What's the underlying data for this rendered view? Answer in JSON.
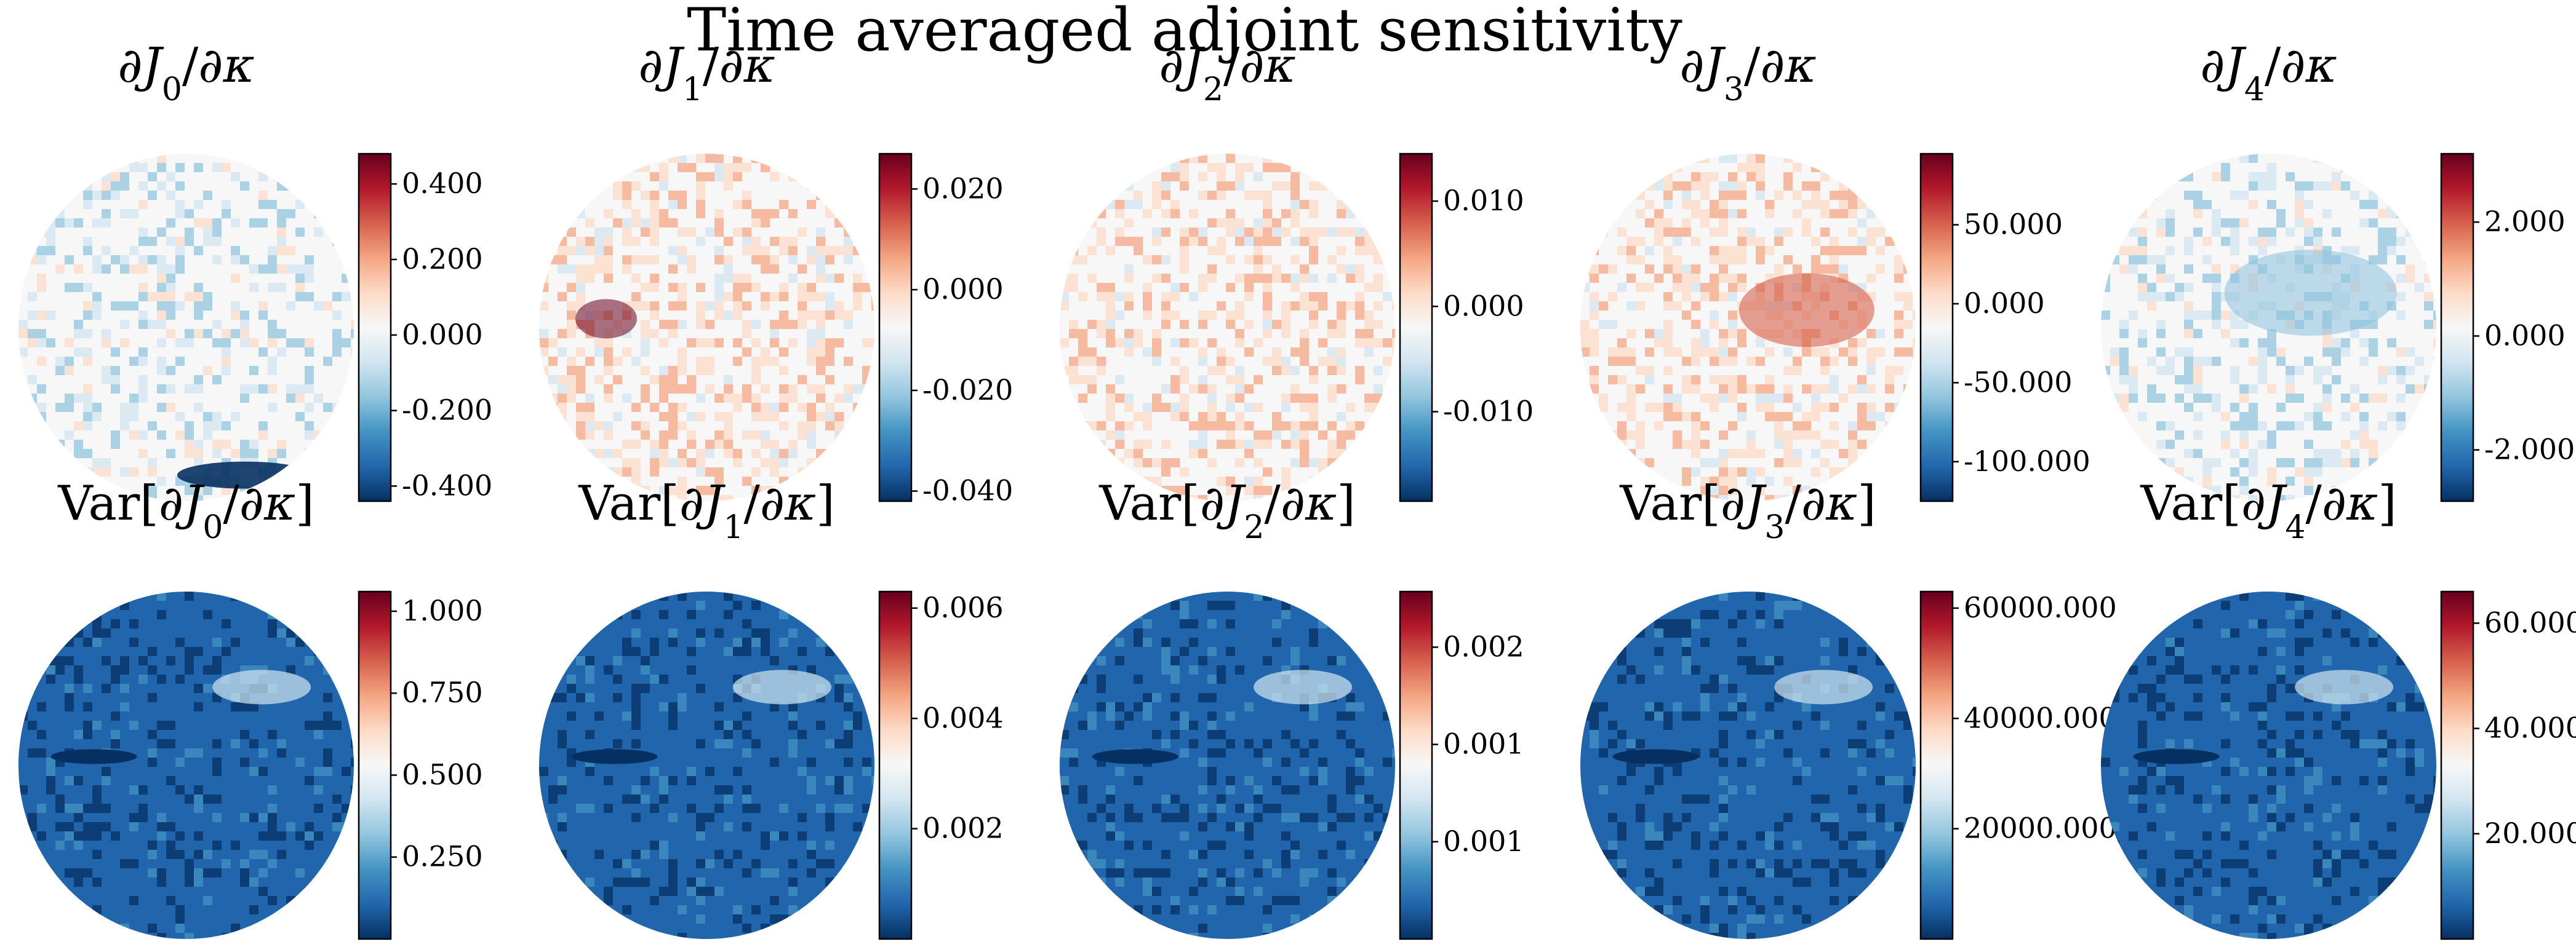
{
  "title": "Time averaged adjoint sensitivity",
  "colormap": {
    "name": "RdBu_r",
    "stops": [
      "#053061",
      "#2166ac",
      "#4393c3",
      "#92c5de",
      "#d1e5f0",
      "#f7f7f7",
      "#fddbc7",
      "#f4a582",
      "#d6604d",
      "#b2182b",
      "#67001f"
    ]
  },
  "chart_data": [
    {
      "type": "heatmap",
      "title": "∂J0/∂κ",
      "field": "mean",
      "symbol": "J",
      "index": "0",
      "range": [
        -0.44,
        0.48
      ],
      "colorbar_ticks": [
        {
          "value": 0.4,
          "label": "0.400"
        },
        {
          "value": 0.2,
          "label": "0.200"
        },
        {
          "value": 0.0,
          "label": "0.000"
        },
        {
          "value": -0.2,
          "label": "-0.200"
        },
        {
          "value": -0.4,
          "label": "-0.400"
        }
      ]
    },
    {
      "type": "heatmap",
      "title": "∂J1/∂κ",
      "field": "mean",
      "symbol": "J",
      "index": "1",
      "range": [
        -0.042,
        0.027
      ],
      "colorbar_ticks": [
        {
          "value": 0.02,
          "label": "0.020"
        },
        {
          "value": 0.0,
          "label": "0.000"
        },
        {
          "value": -0.02,
          "label": "-0.020"
        },
        {
          "value": -0.04,
          "label": "-0.040"
        }
      ]
    },
    {
      "type": "heatmap",
      "title": "∂J2/∂κ",
      "field": "mean",
      "symbol": "J",
      "index": "2",
      "range": [
        -0.0185,
        0.0145
      ],
      "colorbar_ticks": [
        {
          "value": 0.01,
          "label": "0.010"
        },
        {
          "value": 0.0,
          "label": "0.000"
        },
        {
          "value": -0.01,
          "label": "-0.010"
        }
      ]
    },
    {
      "type": "heatmap",
      "title": "∂J3/∂κ",
      "field": "mean",
      "symbol": "J",
      "index": "3",
      "range": [
        -125,
        95
      ],
      "colorbar_ticks": [
        {
          "value": 50,
          "label": "50.000"
        },
        {
          "value": 0,
          "label": "0.000"
        },
        {
          "value": -50,
          "label": "-50.000"
        },
        {
          "value": -100,
          "label": "-100.000"
        }
      ]
    },
    {
      "type": "heatmap",
      "title": "∂J4/∂κ",
      "field": "mean",
      "symbol": "J",
      "index": "4",
      "range": [
        -2.9,
        3.2
      ],
      "colorbar_ticks": [
        {
          "value": 2,
          "label": "2.000"
        },
        {
          "value": 0,
          "label": "0.000"
        },
        {
          "value": -2,
          "label": "-2.000"
        }
      ]
    },
    {
      "type": "heatmap",
      "title": "Var[∂J0/∂κ]",
      "field": "variance",
      "symbol": "J",
      "index": "0",
      "range": [
        0.0,
        1.06
      ],
      "colorbar_ticks": [
        {
          "value": 1.0,
          "label": "1.000"
        },
        {
          "value": 0.75,
          "label": "0.750"
        },
        {
          "value": 0.5,
          "label": "0.500"
        },
        {
          "value": 0.25,
          "label": "0.250"
        }
      ]
    },
    {
      "type": "heatmap",
      "title": "Var[∂J1/∂κ]",
      "field": "variance",
      "symbol": "J",
      "index": "1",
      "range": [
        0.0,
        0.0063
      ],
      "colorbar_ticks": [
        {
          "value": 0.006,
          "label": "0.006"
        },
        {
          "value": 0.004,
          "label": "0.004"
        },
        {
          "value": 0.002,
          "label": "0.002"
        }
      ]
    },
    {
      "type": "heatmap",
      "title": "Var[∂J2/∂κ]",
      "field": "variance",
      "symbol": "J",
      "index": "2",
      "range": [
        0.0,
        0.0025
      ],
      "colorbar_ticks": [
        {
          "value": 0.0021,
          "label": "0.002"
        },
        {
          "value": 0.0014,
          "label": "0.001"
        },
        {
          "value": 0.0007,
          "label": "0.001"
        }
      ]
    },
    {
      "type": "heatmap",
      "title": "Var[∂J3/∂κ]",
      "field": "variance",
      "symbol": "J",
      "index": "3",
      "range": [
        0,
        63000
      ],
      "colorbar_ticks": [
        {
          "value": 60000,
          "label": "60000.000"
        },
        {
          "value": 40000,
          "label": "40000.000"
        },
        {
          "value": 20000,
          "label": "20000.000"
        }
      ]
    },
    {
      "type": "heatmap",
      "title": "Var[∂J4/∂κ]",
      "field": "variance",
      "symbol": "J",
      "index": "4",
      "range": [
        0,
        66
      ],
      "colorbar_ticks": [
        {
          "value": 60,
          "label": "60.000"
        },
        {
          "value": 40,
          "label": "40.000"
        },
        {
          "value": 20,
          "label": "20.000"
        }
      ]
    }
  ]
}
